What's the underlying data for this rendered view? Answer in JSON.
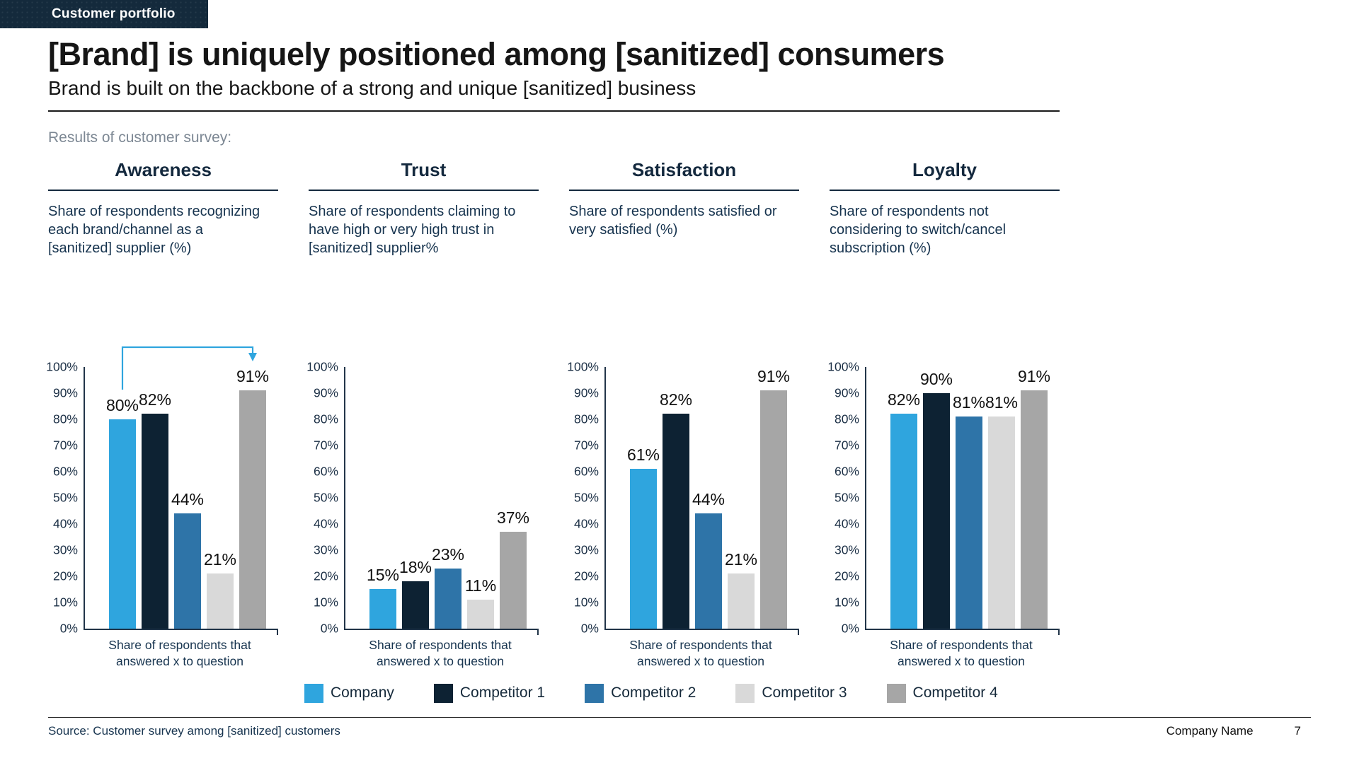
{
  "slide": {
    "tag": "Customer portfolio",
    "title": "[Brand] is uniquely positioned among [sanitized] consumers",
    "subtitle": "Brand is built on the backbone of a strong and unique [sanitized] business",
    "intro": "Results of customer survey:"
  },
  "legend": {
    "items": [
      {
        "label": "Company",
        "color": "#2FA5DE"
      },
      {
        "label": "Competitor 1",
        "color": "#0D2233"
      },
      {
        "label": "Competitor 2",
        "color": "#2E74A8"
      },
      {
        "label": "Competitor 3",
        "color": "#D9D9D9"
      },
      {
        "label": "Competitor 4",
        "color": "#A6A6A6"
      }
    ]
  },
  "chart_data": [
    {
      "type": "bar",
      "title": "Awareness",
      "description": "Share of respondents recognizing each brand/channel as a [sanitized] supplier (%)",
      "categories": [
        "Company",
        "Competitor 1",
        "Competitor 2",
        "Competitor 3",
        "Competitor 4"
      ],
      "values": [
        80,
        82,
        44,
        21,
        91
      ],
      "unit": "%",
      "xlabel": "Share of respondents that answered x to question",
      "ylim": [
        0,
        100
      ],
      "ytick_step": 10,
      "yticks": [
        "0%",
        "10%",
        "20%",
        "30%",
        "40%",
        "50%",
        "60%",
        "70%",
        "80%",
        "90%",
        "100%"
      ],
      "grid": false,
      "annotation": {
        "type": "elbow-arrow",
        "from_category": "Company",
        "to_category": "Competitor 4",
        "color": "#2FA5DE"
      }
    },
    {
      "type": "bar",
      "title": "Trust",
      "description": "Share of respondents claiming to have high or very high trust in [sanitized] supplier%",
      "categories": [
        "Company",
        "Competitor 1",
        "Competitor 2",
        "Competitor 3",
        "Competitor 4"
      ],
      "values": [
        15,
        18,
        23,
        11,
        37
      ],
      "unit": "%",
      "xlabel": "Share of respondents that answered x to question",
      "ylim": [
        0,
        100
      ],
      "ytick_step": 10,
      "yticks": [
        "0%",
        "10%",
        "20%",
        "30%",
        "40%",
        "50%",
        "60%",
        "70%",
        "80%",
        "90%",
        "100%"
      ],
      "grid": false
    },
    {
      "type": "bar",
      "title": "Satisfaction",
      "description": "Share of respondents satisfied or very satisfied (%)",
      "categories": [
        "Company",
        "Competitor 1",
        "Competitor 2",
        "Competitor 3",
        "Competitor 4"
      ],
      "values": [
        61,
        82,
        44,
        21,
        91
      ],
      "unit": "%",
      "xlabel": "Share of respondents that answered x to question",
      "ylim": [
        0,
        100
      ],
      "ytick_step": 10,
      "yticks": [
        "0%",
        "10%",
        "20%",
        "30%",
        "40%",
        "50%",
        "60%",
        "70%",
        "80%",
        "90%",
        "100%"
      ],
      "grid": false
    },
    {
      "type": "bar",
      "title": "Loyalty",
      "description": "Share of respondents not considering to switch/cancel subscription (%)",
      "categories": [
        "Company",
        "Competitor 1",
        "Competitor 2",
        "Competitor 3",
        "Competitor 4"
      ],
      "values": [
        82,
        90,
        81,
        81,
        91
      ],
      "unit": "%",
      "xlabel": "Share of respondents that answered x to question",
      "ylim": [
        0,
        100
      ],
      "ytick_step": 10,
      "yticks": [
        "0%",
        "10%",
        "20%",
        "30%",
        "40%",
        "50%",
        "60%",
        "70%",
        "80%",
        "90%",
        "100%"
      ],
      "grid": false
    }
  ],
  "footer": {
    "source": "Source: Customer survey among [sanitized] customers",
    "company": "Company Name",
    "page_number": "7"
  }
}
